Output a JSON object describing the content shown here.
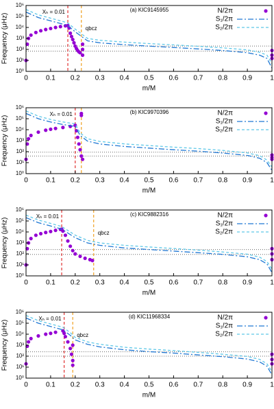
{
  "chart_data": [
    {
      "type": "line",
      "title": "(a) KIC9145955",
      "xlabel": "m/M",
      "ylabel": "Frequency (μHz)",
      "log_y": true,
      "xlim": [
        0,
        1
      ],
      "ylim": [
        1,
        1000000
      ],
      "xticks": [
        0,
        0.1,
        0.2,
        0.3,
        0.4,
        0.5,
        0.6,
        0.7,
        0.8,
        0.9,
        1
      ],
      "yticks": [
        {
          "value": 1,
          "label": "10⁰"
        },
        {
          "value": 10,
          "label": "10¹"
        },
        {
          "value": 100,
          "label": "10²"
        },
        {
          "value": 1000,
          "label": "10³"
        },
        {
          "value": 10000,
          "label": "10⁴"
        },
        {
          "value": 100000,
          "label": "10⁵"
        },
        {
          "value": 1000000,
          "label": "10⁶"
        }
      ],
      "series": [
        {
          "name": "N/2π",
          "color": "#9400d3",
          "style": "points",
          "x": [
            0,
            0.005,
            0.01,
            0.02,
            0.04,
            0.06,
            0.08,
            0.1,
            0.12,
            0.14,
            0.16,
            0.17,
            0.175,
            0.18,
            0.185,
            0.19,
            0.195,
            0.2,
            0.205,
            0.21,
            0.215,
            0.22,
            0.23,
            0.23,
            0.23,
            1,
            1,
            1
          ],
          "values": [
            10,
            300,
            1000,
            2000,
            3500,
            5000,
            6500,
            8000,
            10000,
            12000,
            14000,
            15000,
            9000,
            3000,
            1500,
            800,
            400,
            200,
            120,
            80,
            60,
            50,
            300,
            100,
            30,
            80,
            30,
            15
          ]
        },
        {
          "name": "S₁/2π",
          "color": "#1f77d4",
          "style": "dashdot",
          "x": [
            0,
            0.05,
            0.1,
            0.15,
            0.17,
            0.2,
            0.25,
            0.3,
            0.4,
            0.5,
            0.6,
            0.7,
            0.8,
            0.9,
            0.95,
            0.98,
            1
          ],
          "values": [
            250000,
            80000,
            40000,
            20000,
            15000,
            4000,
            600,
            400,
            270,
            200,
            150,
            110,
            80,
            50,
            30,
            15,
            2
          ]
        },
        {
          "name": "S₂/2π",
          "color": "#5ec8e8",
          "style": "dashed",
          "x": [
            0,
            0.05,
            0.1,
            0.15,
            0.17,
            0.2,
            0.25,
            0.3,
            0.4,
            0.5,
            0.6,
            0.7,
            0.8,
            0.9,
            0.95,
            0.98,
            1
          ],
          "values": [
            430000,
            140000,
            70000,
            35000,
            26000,
            7000,
            1000,
            680,
            460,
            340,
            260,
            190,
            140,
            90,
            55,
            30,
            5
          ]
        }
      ],
      "vlines": [
        {
          "value": 0.17,
          "color": "#e03030",
          "label": "Xₕ = 0.01"
        },
        {
          "value": 0.225,
          "color": "#f0a020",
          "label": "qbcz"
        }
      ],
      "hlines": [
        70,
        200
      ]
    },
    {
      "type": "line",
      "title": "(b) KIC9970396",
      "xlabel": "m/M",
      "ylabel": "Frequency (μHz)",
      "log_y": true,
      "xlim": [
        0,
        1
      ],
      "ylim": [
        1,
        1000000
      ],
      "xticks": [
        0,
        0.1,
        0.2,
        0.3,
        0.4,
        0.5,
        0.6,
        0.7,
        0.8,
        0.9,
        1
      ],
      "yticks": [
        {
          "value": 1,
          "label": "10⁰"
        },
        {
          "value": 10,
          "label": "10¹"
        },
        {
          "value": 100,
          "label": "10²"
        },
        {
          "value": 1000,
          "label": "10³"
        },
        {
          "value": 10000,
          "label": "10⁴"
        },
        {
          "value": 100000,
          "label": "10⁵"
        },
        {
          "value": 1000000,
          "label": "10⁶"
        }
      ],
      "series": [
        {
          "name": "N/2π",
          "color": "#9400d3",
          "style": "points",
          "x": [
            0,
            0.005,
            0.01,
            0.02,
            0.05,
            0.08,
            0.1,
            0.12,
            0.15,
            0.18,
            0.2,
            0.205,
            0.21,
            0.215,
            0.22,
            0.225,
            0.23,
            0.225,
            0.225,
            1,
            1,
            1
          ],
          "values": [
            20,
            500,
            1500,
            3000,
            6000,
            9000,
            11000,
            13000,
            16000,
            20000,
            25000,
            8000,
            2000,
            500,
            150,
            40,
            20,
            300000,
            200000,
            50,
            30,
            20
          ]
        },
        {
          "name": "S₁/2π",
          "color": "#1f77d4",
          "style": "dashdot",
          "x": [
            0,
            0.05,
            0.1,
            0.15,
            0.2,
            0.22,
            0.25,
            0.3,
            0.4,
            0.5,
            0.6,
            0.7,
            0.8,
            0.9,
            0.95,
            0.98,
            1
          ],
          "values": [
            300000,
            100000,
            50000,
            30000,
            20000,
            3000,
            900,
            500,
            300,
            210,
            150,
            110,
            75,
            45,
            25,
            10,
            2
          ]
        },
        {
          "name": "S₂/2π",
          "color": "#5ec8e8",
          "style": "dashed",
          "x": [
            0,
            0.05,
            0.1,
            0.15,
            0.2,
            0.22,
            0.25,
            0.3,
            0.4,
            0.5,
            0.6,
            0.7,
            0.8,
            0.9,
            0.95,
            0.98,
            1
          ],
          "values": [
            510000,
            170000,
            85000,
            51000,
            34000,
            5100,
            1500,
            850,
            510,
            360,
            260,
            190,
            130,
            77,
            43,
            17,
            4
          ]
        }
      ],
      "vlines": [
        {
          "value": 0.2,
          "color": "#e03030",
          "label": "Xₕ = 0.01"
        },
        {
          "value": 0.225,
          "color": "#f0a020"
        }
      ],
      "hlines": [
        40,
        90
      ]
    },
    {
      "type": "line",
      "title": "(c) KIC9882316",
      "xlabel": "m/M",
      "ylabel": "Frequency (μHz)",
      "log_y": true,
      "xlim": [
        0,
        1
      ],
      "ylim": [
        1,
        1000000
      ],
      "xticks": [
        0,
        0.1,
        0.2,
        0.3,
        0.4,
        0.5,
        0.6,
        0.7,
        0.8,
        0.9,
        1
      ],
      "yticks": [
        {
          "value": 1,
          "label": "10⁰"
        },
        {
          "value": 10,
          "label": "10¹"
        },
        {
          "value": 100,
          "label": "10²"
        },
        {
          "value": 1000,
          "label": "10³"
        },
        {
          "value": 10000,
          "label": "10⁴"
        },
        {
          "value": 100000,
          "label": "10⁵"
        },
        {
          "value": 1000000,
          "label": "10⁶"
        }
      ],
      "series": [
        {
          "name": "N/2π",
          "color": "#9400d3",
          "style": "points",
          "x": [
            0,
            0.005,
            0.01,
            0.02,
            0.04,
            0.06,
            0.08,
            0.1,
            0.12,
            0.14,
            0.145,
            0.15,
            0.16,
            0.17,
            0.18,
            0.19,
            0.2,
            0.22,
            0.24,
            0.26,
            0.27,
            1,
            1,
            1
          ],
          "values": [
            10,
            300,
            1000,
            2500,
            5000,
            7000,
            9000,
            11000,
            14000,
            17000,
            18000,
            12000,
            5000,
            1500,
            500,
            200,
            100,
            60,
            40,
            30,
            25,
            300,
            100,
            30
          ]
        },
        {
          "name": "S₁/2π",
          "color": "#1f77d4",
          "style": "dashdot",
          "x": [
            0,
            0.05,
            0.1,
            0.145,
            0.2,
            0.25,
            0.3,
            0.4,
            0.5,
            0.6,
            0.7,
            0.8,
            0.9,
            0.95,
            0.98,
            1
          ],
          "values": [
            200000,
            70000,
            35000,
            18000,
            3000,
            1000,
            600,
            350,
            250,
            180,
            130,
            90,
            55,
            30,
            12,
            2
          ]
        },
        {
          "name": "S₂/2π",
          "color": "#5ec8e8",
          "style": "dashed",
          "x": [
            0,
            0.05,
            0.1,
            0.145,
            0.2,
            0.25,
            0.3,
            0.4,
            0.5,
            0.6,
            0.7,
            0.8,
            0.9,
            0.95,
            0.98,
            1
          ],
          "values": [
            340000,
            120000,
            60000,
            31000,
            5100,
            1700,
            1000,
            600,
            430,
            310,
            220,
            150,
            94,
            51,
            20,
            4
          ]
        }
      ],
      "vlines": [
        {
          "value": 0.145,
          "color": "#e03030",
          "label": "Xₕ = 0.01"
        },
        {
          "value": 0.275,
          "color": "#f0a020",
          "label": "qbcz"
        }
      ],
      "hlines": [
        90,
        250
      ]
    },
    {
      "type": "line",
      "title": "(d) KIC11968334",
      "xlabel": "m/M",
      "ylabel": "Frequency (μHz)",
      "log_y": true,
      "xlim": [
        0,
        1
      ],
      "ylim": [
        1,
        1000000
      ],
      "xticks": [
        0,
        0.1,
        0.2,
        0.3,
        0.4,
        0.5,
        0.6,
        0.7,
        0.8,
        0.9,
        1
      ],
      "yticks": [
        {
          "value": 1,
          "label": "10⁰"
        },
        {
          "value": 10,
          "label": "10¹"
        },
        {
          "value": 100,
          "label": "10²"
        },
        {
          "value": 1000,
          "label": "10³"
        },
        {
          "value": 10000,
          "label": "10⁴"
        },
        {
          "value": 100000,
          "label": "10⁵"
        },
        {
          "value": 1000000,
          "label": "10⁶"
        }
      ],
      "series": [
        {
          "name": "N/2π",
          "color": "#9400d3",
          "style": "points",
          "x": [
            0,
            0.005,
            0.01,
            0.02,
            0.05,
            0.08,
            0.1,
            0.12,
            0.15,
            0.155,
            0.16,
            0.17,
            0.18,
            0.185,
            0.19,
            0.19,
            0.19,
            1,
            1,
            1
          ],
          "values": [
            20,
            800,
            2000,
            4000,
            7000,
            10000,
            12000,
            15000,
            20000,
            12000,
            6000,
            2000,
            500,
            150,
            40,
            1000,
            15,
            150,
            50,
            20
          ]
        },
        {
          "name": "S₁/2π",
          "color": "#1f77d4",
          "style": "dashdot",
          "x": [
            0,
            0.05,
            0.1,
            0.15,
            0.18,
            0.2,
            0.25,
            0.3,
            0.4,
            0.5,
            0.6,
            0.7,
            0.8,
            0.9,
            0.95,
            0.98,
            1
          ],
          "values": [
            300000,
            100000,
            50000,
            25000,
            8000,
            3000,
            1200,
            700,
            380,
            260,
            190,
            130,
            90,
            55,
            30,
            12,
            2
          ]
        },
        {
          "name": "S₂/2π",
          "color": "#5ec8e8",
          "style": "dashed",
          "x": [
            0,
            0.05,
            0.1,
            0.15,
            0.18,
            0.2,
            0.25,
            0.3,
            0.4,
            0.5,
            0.6,
            0.7,
            0.8,
            0.9,
            0.95,
            0.98,
            1
          ],
          "values": [
            510000,
            170000,
            85000,
            43000,
            14000,
            5100,
            2000,
            1200,
            650,
            440,
            320,
            220,
            150,
            94,
            51,
            20,
            4
          ]
        }
      ],
      "vlines": [
        {
          "value": 0.155,
          "color": "#e03030",
          "label": "Xₕ = 0.01"
        },
        {
          "value": 0.19,
          "color": "#f0a020",
          "label": "qbcz"
        }
      ],
      "hlines": [
        100,
        250
      ]
    }
  ]
}
